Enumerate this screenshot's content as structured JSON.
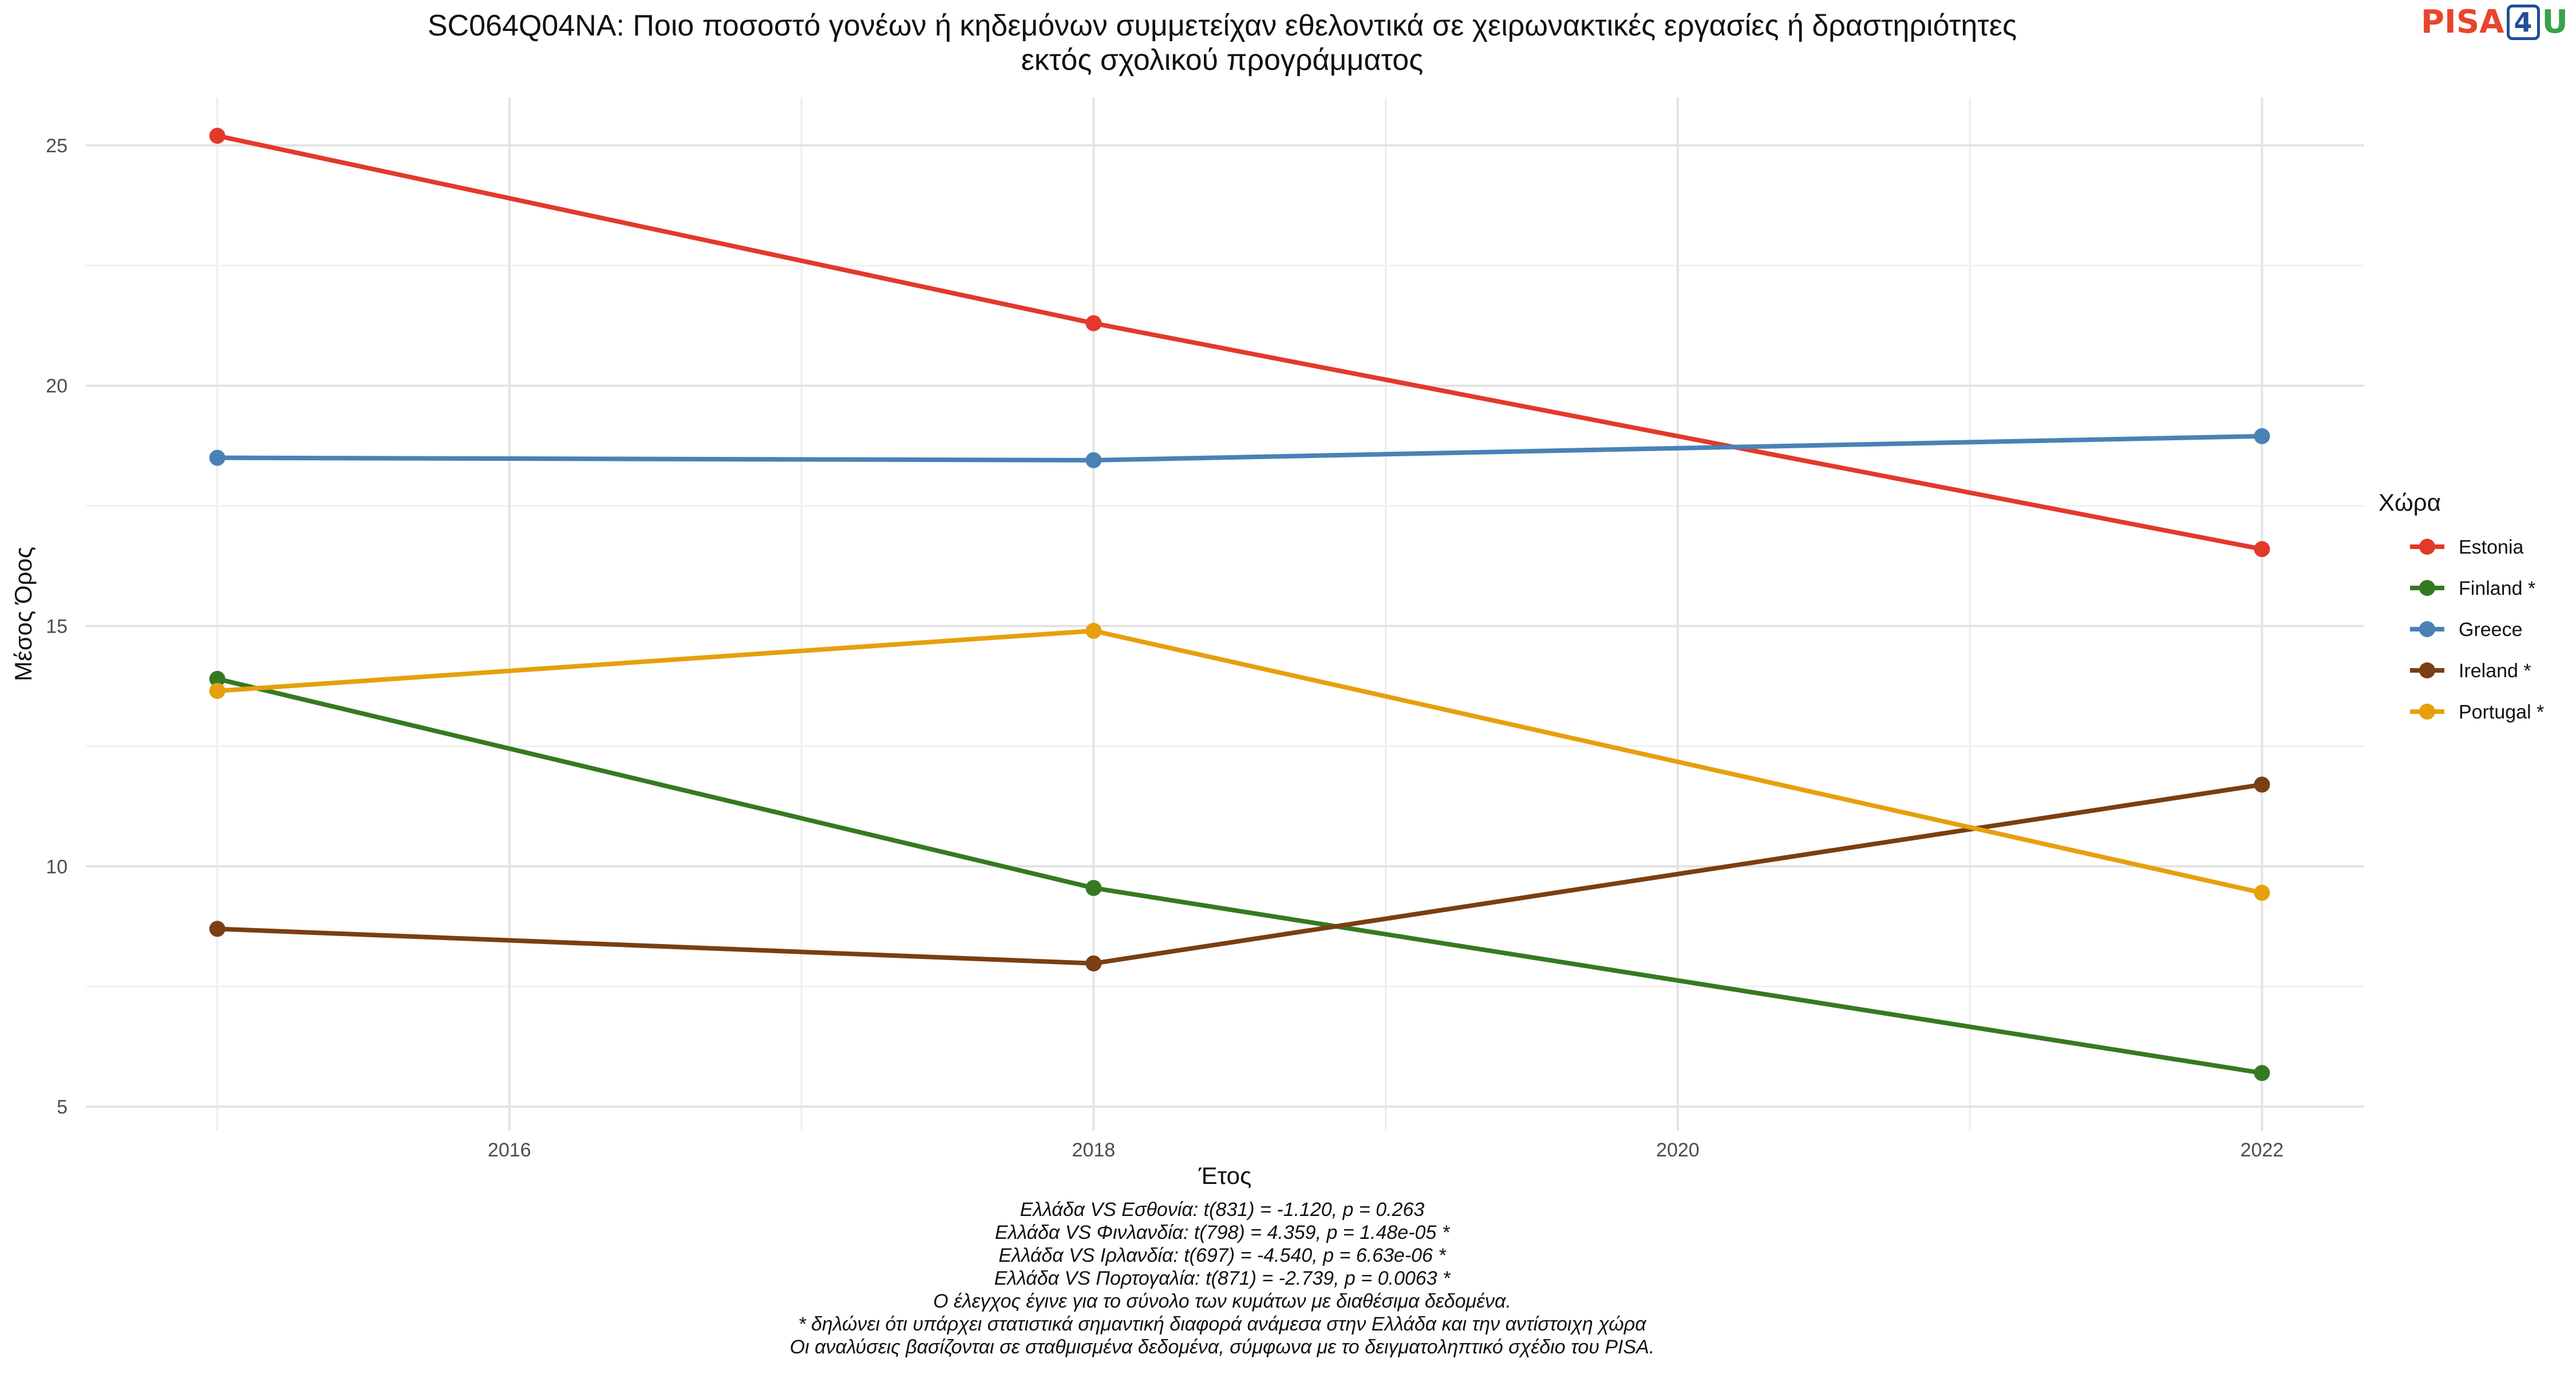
{
  "logo": {
    "pisa": "PISA",
    "four": "4",
    "u": "U"
  },
  "chart_data": {
    "type": "line",
    "title": "SC064Q04NA: Ποιο ποσοστό γονέων ή κηδεμόνων συμμετείχαν εθελοντικά σε χειρωνακτικές εργασίες ή δραστηριότητες εκτός σχολικού προγράμματος",
    "title_lines": [
      "SC064Q04NA: Ποιο ποσοστό γονέων ή κηδεμόνων συμμετείχαν εθελοντικά σε χειρωνακτικές εργασίες ή δραστηριότητες",
      "εκτός σχολικού προγράμματος"
    ],
    "xlabel": "Έτος",
    "ylabel": "Μέσος Όρος",
    "xlim": [
      2014.55,
      2022.35
    ],
    "ylim": [
      4.5,
      26.0
    ],
    "xticks": [
      2016,
      2018,
      2020,
      2022
    ],
    "yticks": [
      5,
      10,
      15,
      20,
      25
    ],
    "grid": true,
    "legend": {
      "title": "Χώρα",
      "position": "right"
    },
    "series": [
      {
        "name": "Estonia",
        "color": "#e3392b",
        "x": [
          2015,
          2018,
          2022
        ],
        "values": [
          25.2,
          21.3,
          16.6
        ]
      },
      {
        "name": "Finland *",
        "color": "#357a22",
        "x": [
          2015,
          2018,
          2022
        ],
        "values": [
          13.9,
          9.55,
          5.7
        ]
      },
      {
        "name": "Greece",
        "color": "#4a82b6",
        "x": [
          2015,
          2018,
          2022
        ],
        "values": [
          18.5,
          18.45,
          18.95
        ]
      },
      {
        "name": "Ireland *",
        "color": "#7a3f12",
        "x": [
          2015,
          2018,
          2022
        ],
        "values": [
          8.7,
          7.98,
          11.7
        ]
      },
      {
        "name": "Portugal *",
        "color": "#e6a00c",
        "x": [
          2015,
          2018,
          2022
        ],
        "values": [
          13.65,
          14.9,
          9.45
        ]
      }
    ],
    "caption_lines": [
      "Ελλάδα VS Εσθονία: t(831) = -1.120, p = 0.263",
      "Ελλάδα VS Φινλανδία: t(798) = 4.359, p = 1.48e-05 *",
      "Ελλάδα VS Ιρλανδία: t(697) = -4.540, p = 6.63e-06 *",
      "Ελλάδα VS Πορτογαλία: t(871) = -2.739, p = 0.0063 *",
      "Ο έλεγχος έγινε για το σύνολο των κυμάτων με διαθέσιμα δεδομένα.",
      "* δηλώνει ότι υπάρχει στατιστικά σημαντική διαφορά ανάμεσα στην Ελλάδα και την αντίστοιχη χώρα",
      "Οι αναλύσεις βασίζονται σε σταθμισμένα δεδομένα, σύμφωνα με το δειγματοληπτικό σχέδιο του PISA."
    ]
  }
}
